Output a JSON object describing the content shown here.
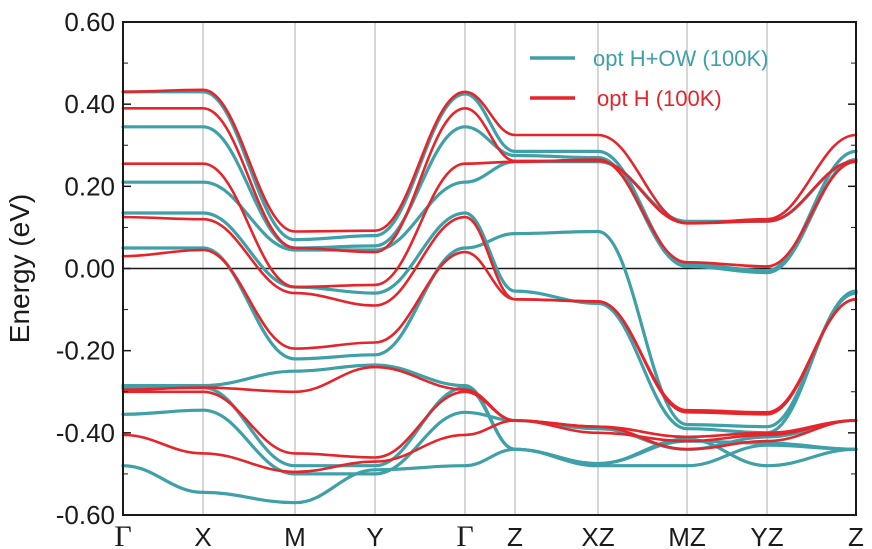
{
  "chart_data": {
    "type": "line",
    "title": "",
    "ylabel": "Energy (eV)",
    "xlabel": "",
    "ylim": [
      -0.6,
      0.6
    ],
    "yticks": [
      "0.60",
      "0.40",
      "0.20",
      "0.00",
      "-0.20",
      "-0.40",
      "-0.60"
    ],
    "kpoints": [
      {
        "label": "Γ",
        "x": 0,
        "serif": true
      },
      {
        "label": "X",
        "x": 1
      },
      {
        "label": "M",
        "x": 2
      },
      {
        "label": "Y",
        "x": 3
      },
      {
        "label": "Γ",
        "x": 4,
        "serif": true
      },
      {
        "label": "Z",
        "x": 5
      },
      {
        "label": "XZ",
        "x": 6
      },
      {
        "label": "MZ",
        "x": 7
      },
      {
        "label": "YZ",
        "x": 8
      },
      {
        "label": "Z",
        "x": 9
      }
    ],
    "xlim": [
      0,
      9
    ],
    "zero_line": 0.0,
    "legend_position": "top-right",
    "series": [
      {
        "name": "opt H+OW (100K)",
        "color": "#3fa0a8",
        "bands": [
          [
            [
              0,
              0.43
            ],
            [
              1,
              0.43
            ],
            [
              2,
              0.07
            ],
            [
              3,
              0.08
            ],
            [
              4,
              0.425
            ],
            [
              5,
              0.285
            ],
            [
              6,
              0.285
            ],
            [
              7,
              0.01
            ],
            [
              8,
              -0.005
            ],
            [
              9,
              0.285
            ]
          ],
          [
            [
              0,
              0.345
            ],
            [
              1,
              0.345
            ],
            [
              2,
              0.05
            ],
            [
              3,
              0.055
            ],
            [
              4,
              0.345
            ],
            [
              5,
              0.275
            ],
            [
              6,
              0.27
            ],
            [
              7,
              0.005
            ],
            [
              8,
              -0.01
            ],
            [
              9,
              0.265
            ]
          ],
          [
            [
              0,
              0.21
            ],
            [
              1,
              0.21
            ],
            [
              2,
              0.045
            ],
            [
              3,
              0.045
            ],
            [
              4,
              0.21
            ],
            [
              5,
              0.26
            ],
            [
              6,
              0.26
            ],
            [
              7,
              0.115
            ],
            [
              8,
              0.115
            ],
            [
              9,
              0.26
            ]
          ],
          [
            [
              0,
              0.135
            ],
            [
              1,
              0.135
            ],
            [
              2,
              -0.045
            ],
            [
              3,
              -0.06
            ],
            [
              4,
              0.135
            ],
            [
              5,
              -0.055
            ],
            [
              6,
              -0.085
            ],
            [
              7,
              -0.39
            ],
            [
              8,
              -0.4
            ],
            [
              9,
              -0.055
            ]
          ],
          [
            [
              0,
              0.05
            ],
            [
              1,
              0.05
            ],
            [
              2,
              -0.22
            ],
            [
              3,
              -0.21
            ],
            [
              4,
              0.05
            ],
            [
              5,
              0.085
            ],
            [
              6,
              0.09
            ],
            [
              7,
              -0.38
            ],
            [
              8,
              -0.385
            ],
            [
              9,
              -0.06
            ]
          ],
          [
            [
              0,
              -0.285
            ],
            [
              1,
              -0.285
            ],
            [
              2,
              -0.25
            ],
            [
              3,
              -0.235
            ],
            [
              4,
              -0.285
            ],
            [
              5,
              -0.44
            ],
            [
              6,
              -0.475
            ],
            [
              7,
              -0.42
            ],
            [
              8,
              -0.425
            ],
            [
              9,
              -0.44
            ]
          ],
          [
            [
              0,
              -0.29
            ],
            [
              1,
              -0.29
            ],
            [
              2,
              -0.48
            ],
            [
              3,
              -0.48
            ],
            [
              4,
              -0.29
            ],
            [
              5,
              -0.44
            ],
            [
              6,
              -0.475
            ],
            [
              7,
              -0.415
            ],
            [
              8,
              -0.48
            ],
            [
              9,
              -0.44
            ]
          ],
          [
            [
              0,
              -0.355
            ],
            [
              1,
              -0.345
            ],
            [
              2,
              -0.5
            ],
            [
              3,
              -0.5
            ],
            [
              4,
              -0.35
            ],
            [
              5,
              -0.37
            ],
            [
              6,
              -0.39
            ],
            [
              7,
              -0.44
            ],
            [
              8,
              -0.41
            ],
            [
              9,
              -0.37
            ]
          ],
          [
            [
              0,
              -0.48
            ],
            [
              1,
              -0.545
            ],
            [
              2,
              -0.57
            ],
            [
              3,
              -0.49
            ],
            [
              4,
              -0.48
            ],
            [
              5,
              -0.44
            ],
            [
              6,
              -0.48
            ],
            [
              7,
              -0.48
            ],
            [
              8,
              -0.43
            ],
            [
              9,
              -0.44
            ]
          ]
        ]
      },
      {
        "name": "opt H (100K)",
        "color": "#e5252c",
        "bands": [
          [
            [
              0,
              0.43
            ],
            [
              1,
              0.435
            ],
            [
              2,
              0.09
            ],
            [
              3,
              0.092
            ],
            [
              4,
              0.43
            ],
            [
              5,
              0.325
            ],
            [
              6,
              0.325
            ],
            [
              7,
              0.11
            ],
            [
              8,
              0.12
            ],
            [
              9,
              0.325
            ]
          ],
          [
            [
              0,
              0.39
            ],
            [
              1,
              0.39
            ],
            [
              2,
              0.05
            ],
            [
              3,
              0.04
            ],
            [
              4,
              0.39
            ],
            [
              5,
              0.262
            ],
            [
              6,
              0.262
            ],
            [
              7,
              0.11
            ],
            [
              8,
              0.115
            ],
            [
              9,
              0.262
            ]
          ],
          [
            [
              0,
              0.255
            ],
            [
              1,
              0.255
            ],
            [
              2,
              -0.045
            ],
            [
              3,
              -0.04
            ],
            [
              4,
              0.255
            ],
            [
              5,
              0.26
            ],
            [
              6,
              0.265
            ],
            [
              7,
              0.015
            ],
            [
              8,
              0.005
            ],
            [
              9,
              0.26
            ]
          ],
          [
            [
              0,
              0.125
            ],
            [
              1,
              0.12
            ],
            [
              2,
              -0.06
            ],
            [
              3,
              -0.09
            ],
            [
              4,
              0.125
            ],
            [
              5,
              -0.075
            ],
            [
              6,
              -0.08
            ],
            [
              7,
              -0.345
            ],
            [
              8,
              -0.35
            ],
            [
              9,
              -0.075
            ]
          ],
          [
            [
              0,
              0.03
            ],
            [
              1,
              0.045
            ],
            [
              2,
              -0.195
            ],
            [
              3,
              -0.18
            ],
            [
              4,
              0.04
            ],
            [
              5,
              -0.075
            ],
            [
              6,
              -0.08
            ],
            [
              7,
              -0.35
            ],
            [
              8,
              -0.355
            ],
            [
              9,
              -0.075
            ]
          ],
          [
            [
              0,
              -0.295
            ],
            [
              1,
              -0.29
            ],
            [
              2,
              -0.3
            ],
            [
              3,
              -0.24
            ],
            [
              4,
              -0.295
            ],
            [
              5,
              -0.37
            ],
            [
              6,
              -0.385
            ],
            [
              7,
              -0.41
            ],
            [
              8,
              -0.4
            ],
            [
              9,
              -0.37
            ]
          ],
          [
            [
              0,
              -0.3
            ],
            [
              1,
              -0.3
            ],
            [
              2,
              -0.45
            ],
            [
              3,
              -0.46
            ],
            [
              4,
              -0.3
            ],
            [
              5,
              -0.37
            ],
            [
              6,
              -0.385
            ],
            [
              7,
              -0.44
            ],
            [
              8,
              -0.42
            ],
            [
              9,
              -0.37
            ]
          ],
          [
            [
              0,
              -0.405
            ],
            [
              1,
              -0.45
            ],
            [
              2,
              -0.495
            ],
            [
              3,
              -0.47
            ],
            [
              4,
              -0.405
            ],
            [
              5,
              -0.37
            ],
            [
              6,
              -0.4
            ],
            [
              7,
              -0.42
            ],
            [
              8,
              -0.405
            ],
            [
              9,
              -0.37
            ]
          ]
        ]
      }
    ]
  }
}
